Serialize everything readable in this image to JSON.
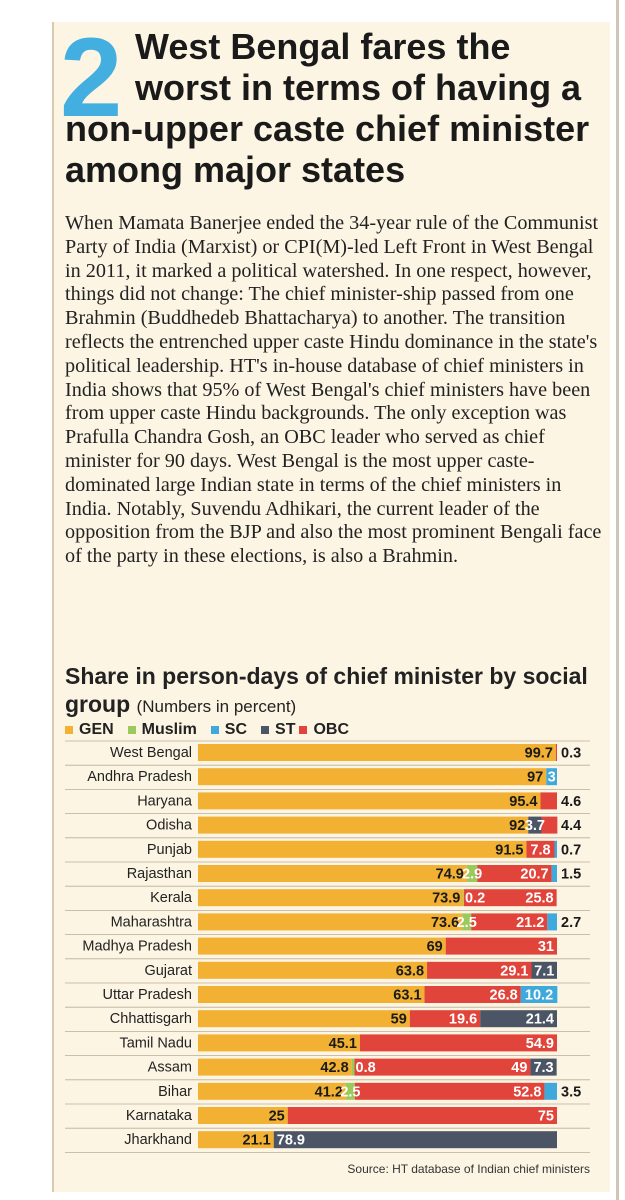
{
  "header": {
    "number": "2",
    "headline_lines": [
      "West Bengal fares the",
      "worst in terms of having a",
      "non-upper caste chief minister",
      "among major states"
    ]
  },
  "body_text": "When Mamata Banerjee ended the 34-year rule of the Communist Party of India (Marxist) or CPI(M)-led Left Front in West Bengal in 2011, it marked a political watershed. In one respect, however, things did not change: The chief minister-ship passed from one Brahmin (Buddhedeb Bhattacharya) to another. The transition reflects the entrenched upper caste Hindu dominance in the state's political leadership. HT's in-house database of chief ministers in India shows that 95% of West Bengal's chief ministers have been from upper caste Hindu backgrounds. The only exception was Prafulla Chandra Gosh, an OBC leader who served as chief minister for 90 days. West Bengal is the most upper caste-dominated large Indian state in terms of the chief ministers in India. Notably, Suvendu Adhikari, the current leader of the opposition from the BJP and also the most prominent Bengali face of the party in these elections, is also a Brahmin.",
  "colors": {
    "GEN": "#f2b133",
    "Muslim": "#9bc95b",
    "SC": "#3fa9dc",
    "ST": "#4b5566",
    "OBC": "#e0443a",
    "card_bg": "#fdf5e4",
    "accent_number": "#43aee0"
  },
  "chart_data": {
    "type": "bar",
    "orientation": "horizontal-stacked",
    "title": "Share in person-days of chief minister by social group",
    "subtitle": "(Numbers in percent)",
    "xlim": [
      0,
      100
    ],
    "legend_position": "top-left",
    "series_names": [
      "GEN",
      "Muslim",
      "SC",
      "ST",
      "OBC"
    ],
    "categories": [
      {
        "state": "West Bengal",
        "values": {
          "GEN": 99.7,
          "Muslim": 0,
          "SC": 0,
          "ST": 0,
          "OBC": 0.3
        }
      },
      {
        "state": "Andhra Pradesh",
        "values": {
          "GEN": 97,
          "Muslim": 0,
          "SC": 3,
          "ST": 0,
          "OBC": 0
        }
      },
      {
        "state": "Haryana",
        "values": {
          "GEN": 95.4,
          "Muslim": 0,
          "SC": 0,
          "ST": 0,
          "OBC": 4.6
        }
      },
      {
        "state": "Odisha",
        "values": {
          "GEN": 92,
          "Muslim": 0,
          "SC": 0,
          "ST": 3.7,
          "OBC": 4.4
        }
      },
      {
        "state": "Punjab",
        "values": {
          "GEN": 91.5,
          "Muslim": 0,
          "SC": 0.7,
          "ST": 0,
          "OBC": 7.8
        }
      },
      {
        "state": "Rajasthan",
        "values": {
          "GEN": 74.9,
          "Muslim": 2.9,
          "SC": 1.5,
          "ST": 0,
          "OBC": 20.7
        }
      },
      {
        "state": "Kerala",
        "values": {
          "GEN": 73.9,
          "Muslim": 0.2,
          "SC": 0,
          "ST": 0,
          "OBC": 25.8
        }
      },
      {
        "state": "Maharashtra",
        "values": {
          "GEN": 73.6,
          "Muslim": 2.5,
          "SC": 2.7,
          "ST": 0,
          "OBC": 21.2
        }
      },
      {
        "state": "Madhya Pradesh",
        "values": {
          "GEN": 69,
          "Muslim": 0,
          "SC": 0,
          "ST": 0,
          "OBC": 31
        }
      },
      {
        "state": "Gujarat",
        "values": {
          "GEN": 63.8,
          "Muslim": 0,
          "SC": 0,
          "ST": 7.1,
          "OBC": 29.1
        }
      },
      {
        "state": "Uttar Pradesh",
        "values": {
          "GEN": 63.1,
          "Muslim": 0,
          "SC": 10.2,
          "ST": 0,
          "OBC": 26.8
        }
      },
      {
        "state": "Chhattisgarh",
        "values": {
          "GEN": 59,
          "Muslim": 0,
          "SC": 0,
          "ST": 21.4,
          "OBC": 19.6
        }
      },
      {
        "state": "Tamil Nadu",
        "values": {
          "GEN": 45.1,
          "Muslim": 0,
          "SC": 0,
          "ST": 0,
          "OBC": 54.9
        }
      },
      {
        "state": "Assam",
        "values": {
          "GEN": 42.8,
          "Muslim": 0.8,
          "SC": 0,
          "ST": 7.3,
          "OBC": 49
        }
      },
      {
        "state": "Bihar",
        "values": {
          "GEN": 41.2,
          "Muslim": 2.5,
          "SC": 3.5,
          "ST": 0,
          "OBC": 52.8
        }
      },
      {
        "state": "Karnataka",
        "values": {
          "GEN": 25,
          "Muslim": 0,
          "SC": 0,
          "ST": 0,
          "OBC": 75
        }
      },
      {
        "state": "Jharkhand",
        "values": {
          "GEN": 21.1,
          "Muslim": 0,
          "SC": 0,
          "ST": 78.9,
          "OBC": 0
        }
      }
    ],
    "bar_labels": [
      [
        {
          "series": "GEN",
          "text": "99.7",
          "pos": "inside-end"
        },
        {
          "series": "OBC",
          "text": "0.3",
          "pos": "outside"
        }
      ],
      [
        {
          "series": "GEN",
          "text": "97",
          "pos": "inside-end"
        },
        {
          "series": "SC",
          "text": "3",
          "pos": "inside"
        }
      ],
      [
        {
          "series": "GEN",
          "text": "95.4",
          "pos": "inside-end"
        },
        {
          "series": "OBC",
          "text": "4.6",
          "pos": "outside"
        }
      ],
      [
        {
          "series": "GEN",
          "text": "92",
          "pos": "inside-end"
        },
        {
          "series": "ST",
          "text": "3.7",
          "pos": "inside"
        },
        {
          "series": "OBC",
          "text": "4.4",
          "pos": "outside"
        }
      ],
      [
        {
          "series": "GEN",
          "text": "91.5",
          "pos": "inside-end"
        },
        {
          "series": "OBC",
          "text": "7.8",
          "pos": "inside"
        },
        {
          "series": "SC",
          "text": "0.7",
          "pos": "outside"
        }
      ],
      [
        {
          "series": "GEN",
          "text": "74.9",
          "pos": "inside-end"
        },
        {
          "series": "Muslim",
          "text": "2.9",
          "pos": "inside"
        },
        {
          "series": "OBC",
          "text": "20.7",
          "pos": "inside-end"
        },
        {
          "series": "SC",
          "text": "1.5",
          "pos": "outside"
        }
      ],
      [
        {
          "series": "GEN",
          "text": "73.9",
          "pos": "inside-end"
        },
        {
          "series": "Muslim",
          "text": "0.2",
          "pos": "after"
        },
        {
          "series": "OBC",
          "text": "25.8",
          "pos": "inside-end"
        }
      ],
      [
        {
          "series": "GEN",
          "text": "73.6",
          "pos": "inside-end"
        },
        {
          "series": "Muslim",
          "text": "2.5",
          "pos": "inside"
        },
        {
          "series": "OBC",
          "text": "21.2",
          "pos": "inside-end"
        },
        {
          "series": "SC",
          "text": "2.7",
          "pos": "outside"
        }
      ],
      [
        {
          "series": "GEN",
          "text": "69",
          "pos": "inside-end"
        },
        {
          "series": "OBC",
          "text": "31",
          "pos": "inside-end"
        }
      ],
      [
        {
          "series": "GEN",
          "text": "63.8",
          "pos": "inside-end"
        },
        {
          "series": "OBC",
          "text": "29.1",
          "pos": "inside-end"
        },
        {
          "series": "ST",
          "text": "7.1",
          "pos": "inside"
        }
      ],
      [
        {
          "series": "GEN",
          "text": "63.1",
          "pos": "inside-end"
        },
        {
          "series": "OBC",
          "text": "26.8",
          "pos": "inside-end"
        },
        {
          "series": "SC",
          "text": "10.2",
          "pos": "inside"
        }
      ],
      [
        {
          "series": "GEN",
          "text": "59",
          "pos": "inside-end"
        },
        {
          "series": "OBC",
          "text": "19.6",
          "pos": "inside-end"
        },
        {
          "series": "ST",
          "text": "21.4",
          "pos": "inside-end"
        }
      ],
      [
        {
          "series": "GEN",
          "text": "45.1",
          "pos": "inside-end"
        },
        {
          "series": "OBC",
          "text": "54.9",
          "pos": "inside-end"
        }
      ],
      [
        {
          "series": "GEN",
          "text": "42.8",
          "pos": "inside-end"
        },
        {
          "series": "Muslim",
          "text": "0.8",
          "pos": "after"
        },
        {
          "series": "OBC",
          "text": "49",
          "pos": "inside-end"
        },
        {
          "series": "ST",
          "text": "7.3",
          "pos": "inside"
        }
      ],
      [
        {
          "series": "GEN",
          "text": "41.2",
          "pos": "inside-end"
        },
        {
          "series": "Muslim",
          "text": "2.5",
          "pos": "inside"
        },
        {
          "series": "OBC",
          "text": "52.8",
          "pos": "inside-end"
        },
        {
          "series": "SC",
          "text": "3.5",
          "pos": "outside"
        }
      ],
      [
        {
          "series": "GEN",
          "text": "25",
          "pos": "inside-end"
        },
        {
          "series": "OBC",
          "text": "75",
          "pos": "inside-end"
        }
      ],
      [
        {
          "series": "GEN",
          "text": "21.1",
          "pos": "inside-end"
        },
        {
          "series": "ST",
          "text": "78.9",
          "pos": "inside-start"
        }
      ]
    ],
    "source": "Source: HT database of Indian chief ministers"
  }
}
